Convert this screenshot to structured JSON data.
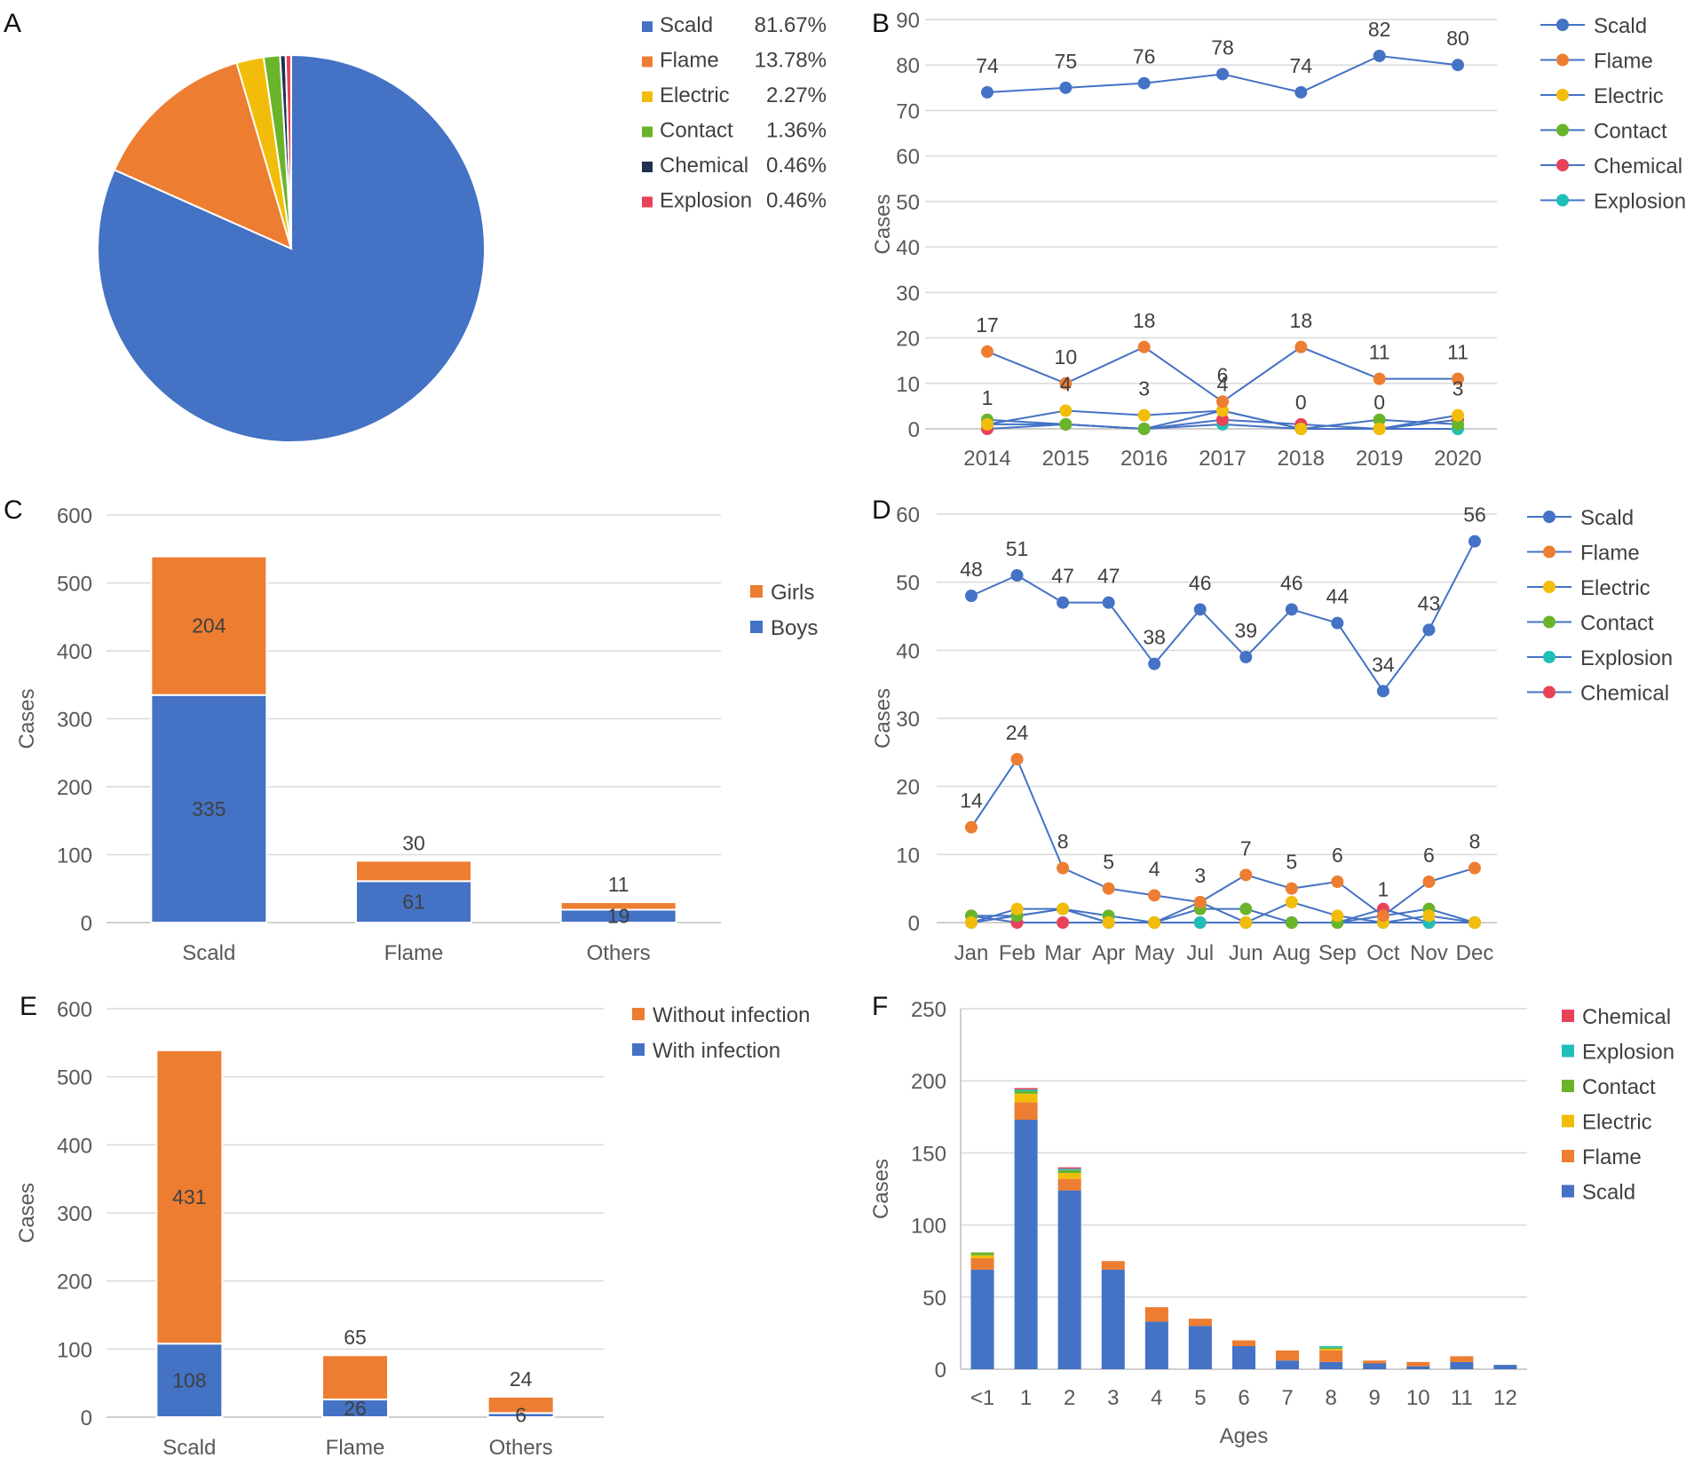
{
  "colors": {
    "Scald": "#4472c4",
    "Flame": "#ed7d31",
    "Electric": "#f2bd0a",
    "Contact": "#6ab42b",
    "Chemical": "#e8425a",
    "Explosion": "#1fbfb8",
    "ChemicalA": "#203050",
    "Girls": "#ed7d31",
    "Boys": "#4472c4",
    "Without infection": "#ed7d31",
    "With infection": "#4472c4"
  },
  "panels": {
    "A": "A",
    "B": "B",
    "C": "C",
    "D": "D",
    "E": "E",
    "F": "F"
  },
  "chart_data": [
    {
      "id": "A",
      "type": "pie",
      "slices": [
        {
          "name": "Scald",
          "value": 81.67,
          "label": "81.67%"
        },
        {
          "name": "Flame",
          "value": 13.78,
          "label": "13.78%"
        },
        {
          "name": "Electric",
          "value": 2.27,
          "label": "2.27%"
        },
        {
          "name": "Contact",
          "value": 1.36,
          "label": "1.36%"
        },
        {
          "name": "Chemical",
          "value": 0.46,
          "label": "0.46%"
        },
        {
          "name": "Explosion",
          "value": 0.46,
          "label": "0.46%"
        }
      ],
      "legend": "right"
    },
    {
      "id": "B",
      "type": "line",
      "categories": [
        "2014",
        "2015",
        "2016",
        "2017",
        "2018",
        "2019",
        "2020"
      ],
      "ylabel": "Cases",
      "ylim": [
        0,
        90
      ],
      "yticks": [
        0,
        10,
        20,
        30,
        40,
        50,
        60,
        70,
        80,
        90
      ],
      "series": [
        {
          "name": "Scald",
          "values": [
            74,
            75,
            76,
            78,
            74,
            82,
            80
          ],
          "labels": [
            "74",
            "75",
            "76",
            "78",
            "74",
            "82",
            "80"
          ]
        },
        {
          "name": "Flame",
          "values": [
            17,
            10,
            18,
            6,
            18,
            11,
            11
          ],
          "labels": [
            "17",
            "10",
            "18",
            "6",
            "18",
            "11",
            "11"
          ]
        },
        {
          "name": "Electric",
          "values": [
            1,
            4,
            3,
            4,
            0,
            0,
            3
          ],
          "labels": [
            "1",
            "4",
            "3",
            "4",
            "0",
            "0",
            "3"
          ]
        },
        {
          "name": "Contact",
          "values": [
            2,
            1,
            0,
            4,
            0,
            2,
            1
          ],
          "labels": []
        },
        {
          "name": "Chemical",
          "values": [
            0,
            1,
            0,
            2,
            1,
            0,
            2
          ],
          "labels": []
        },
        {
          "name": "Explosion",
          "values": [
            1,
            1,
            0,
            1,
            0,
            0,
            0
          ],
          "labels": []
        }
      ],
      "legend_order": [
        "Scald",
        "Flame",
        "Electric",
        "Contact",
        "Chemical",
        "Explosion"
      ],
      "legend": "right"
    },
    {
      "id": "C",
      "type": "bar",
      "categories": [
        "Scald",
        "Flame",
        "Others"
      ],
      "ylabel": "Cases",
      "ylim": [
        0,
        600
      ],
      "yticks": [
        0,
        100,
        200,
        300,
        400,
        500,
        600
      ],
      "series": [
        {
          "name": "Boys",
          "values": [
            335,
            61,
            19
          ]
        },
        {
          "name": "Girls",
          "values": [
            204,
            30,
            11
          ]
        }
      ],
      "legend_order": [
        "Girls",
        "Boys"
      ],
      "legend": "right"
    },
    {
      "id": "D",
      "type": "line",
      "categories": [
        "Jan",
        "Feb",
        "Mar",
        "Apr",
        "May",
        "Jul",
        "Jun",
        "Aug",
        "Sep",
        "Oct",
        "Nov",
        "Dec"
      ],
      "ylabel": "Cases",
      "ylim": [
        0,
        60
      ],
      "yticks": [
        0,
        10,
        20,
        30,
        40,
        50,
        60
      ],
      "series": [
        {
          "name": "Scald",
          "values": [
            48,
            51,
            47,
            47,
            38,
            46,
            39,
            46,
            44,
            34,
            43,
            56
          ],
          "labels": [
            "48",
            "51",
            "47",
            "47",
            "38",
            "46",
            "39",
            "46",
            "44",
            "34",
            "43",
            "56"
          ]
        },
        {
          "name": "Flame",
          "values": [
            14,
            24,
            8,
            5,
            4,
            3,
            7,
            5,
            6,
            1,
            6,
            8
          ],
          "labels": [
            "14",
            "24",
            "8",
            "5",
            "4",
            "3",
            "7",
            "5",
            "6",
            "1",
            "6",
            "8"
          ]
        },
        {
          "name": "Electric",
          "values": [
            0,
            2,
            2,
            0,
            0,
            3,
            0,
            3,
            1,
            0,
            1,
            0
          ],
          "labels": []
        },
        {
          "name": "Contact",
          "values": [
            1,
            1,
            2,
            1,
            0,
            2,
            2,
            0,
            0,
            1,
            2,
            0
          ],
          "labels": []
        },
        {
          "name": "Explosion",
          "values": [
            0,
            1,
            2,
            0,
            0,
            0,
            0,
            0,
            0,
            0,
            0,
            0
          ],
          "labels": []
        },
        {
          "name": "Chemical",
          "values": [
            1,
            0,
            0,
            0,
            0,
            0,
            0,
            0,
            0,
            2,
            0,
            0
          ],
          "labels": []
        }
      ],
      "legend_order": [
        "Scald",
        "Flame",
        "Electric",
        "Contact",
        "Explosion",
        "Chemical"
      ],
      "legend": "right"
    },
    {
      "id": "E",
      "type": "bar",
      "categories": [
        "Scald",
        "Flame",
        "Others"
      ],
      "ylabel": "Cases",
      "ylim": [
        0,
        600
      ],
      "yticks": [
        0,
        100,
        200,
        300,
        400,
        500,
        600
      ],
      "series": [
        {
          "name": "With infection",
          "values": [
            108,
            26,
            6
          ]
        },
        {
          "name": "Without infection",
          "values": [
            431,
            65,
            24
          ]
        }
      ],
      "legend_order": [
        "Without infection",
        "With infection"
      ],
      "legend": "top-right"
    },
    {
      "id": "F",
      "type": "bar",
      "categories": [
        "<1",
        "1",
        "2",
        "3",
        "4",
        "5",
        "6",
        "7",
        "8",
        "9",
        "10",
        "11",
        "12"
      ],
      "xlabel": "Ages",
      "ylabel": "Cases",
      "ylim": [
        0,
        250
      ],
      "yticks": [
        0,
        50,
        100,
        150,
        200,
        250
      ],
      "series": [
        {
          "name": "Scald",
          "values": [
            69,
            173,
            124,
            69,
            33,
            30,
            16,
            6,
            5,
            4,
            2,
            5,
            3
          ]
        },
        {
          "name": "Flame",
          "values": [
            8,
            12,
            8,
            6,
            10,
            5,
            4,
            7,
            8,
            2,
            3,
            4,
            0
          ]
        },
        {
          "name": "Electric",
          "values": [
            2,
            6,
            4,
            0,
            0,
            0,
            0,
            0,
            1,
            0,
            0,
            0,
            0
          ]
        },
        {
          "name": "Contact",
          "values": [
            2,
            2,
            2,
            0,
            0,
            0,
            0,
            0,
            1,
            0,
            0,
            0,
            0
          ]
        },
        {
          "name": "Explosion",
          "values": [
            0,
            1,
            1,
            0,
            0,
            0,
            0,
            0,
            1,
            0,
            0,
            0,
            0
          ]
        },
        {
          "name": "Chemical",
          "values": [
            0,
            1,
            1,
            0,
            0,
            0,
            0,
            0,
            0,
            0,
            0,
            0,
            0
          ]
        }
      ],
      "legend_order": [
        "Chemical",
        "Explosion",
        "Contact",
        "Electric",
        "Flame",
        "Scald"
      ],
      "legend": "right"
    }
  ]
}
